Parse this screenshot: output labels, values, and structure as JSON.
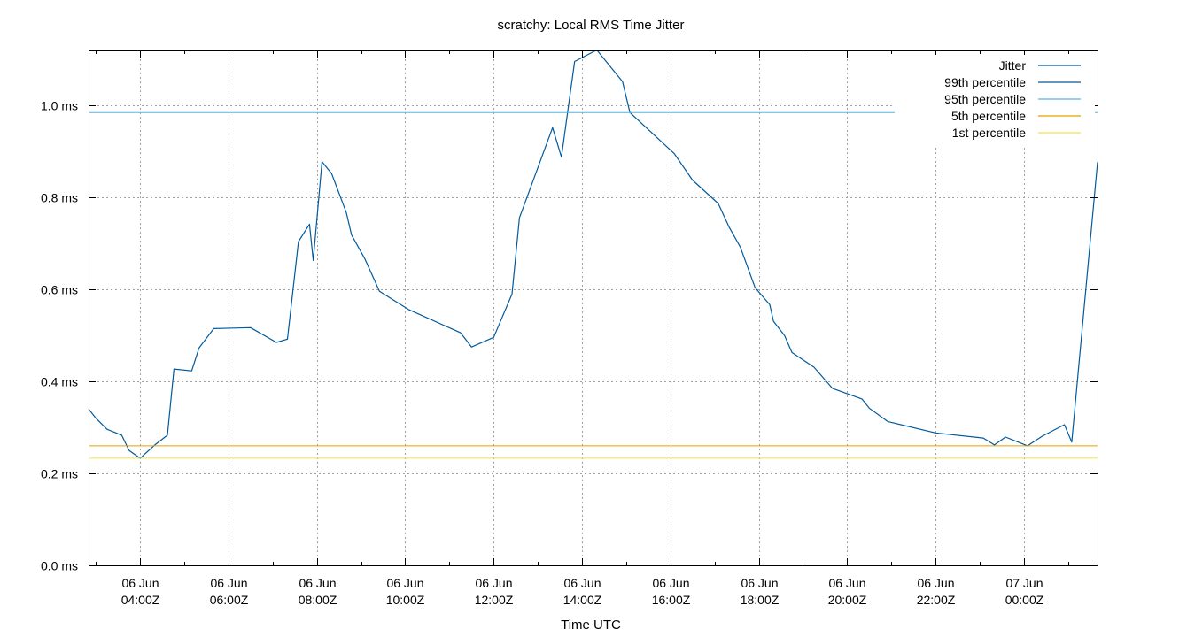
{
  "chart_data": {
    "type": "line",
    "title": "scratchy: Local RMS Time Jitter",
    "xlabel": "Time UTC",
    "ylabel": "",
    "ylim": [
      0,
      1.12
    ],
    "xlim": [
      "2024-06-06T02:50:00Z",
      "2024-06-07T01:40:00Z"
    ],
    "y_ticks": [
      {
        "value": 0.0,
        "label": "0.0 ms"
      },
      {
        "value": 0.2,
        "label": "0.2 ms"
      },
      {
        "value": 0.4,
        "label": "0.4 ms"
      },
      {
        "value": 0.6,
        "label": "0.6 ms"
      },
      {
        "value": 0.8,
        "label": "0.8 ms"
      },
      {
        "value": 1.0,
        "label": "1.0 ms"
      }
    ],
    "x_ticks": [
      {
        "value": "2024-06-06T04:00:00Z",
        "line1": "06 Jun",
        "line2": "04:00Z"
      },
      {
        "value": "2024-06-06T06:00:00Z",
        "line1": "06 Jun",
        "line2": "06:00Z"
      },
      {
        "value": "2024-06-06T08:00:00Z",
        "line1": "06 Jun",
        "line2": "08:00Z"
      },
      {
        "value": "2024-06-06T10:00:00Z",
        "line1": "06 Jun",
        "line2": "10:00Z"
      },
      {
        "value": "2024-06-06T12:00:00Z",
        "line1": "06 Jun",
        "line2": "12:00Z"
      },
      {
        "value": "2024-06-06T14:00:00Z",
        "line1": "06 Jun",
        "line2": "14:00Z"
      },
      {
        "value": "2024-06-06T16:00:00Z",
        "line1": "06 Jun",
        "line2": "16:00Z"
      },
      {
        "value": "2024-06-06T18:00:00Z",
        "line1": "06 Jun",
        "line2": "18:00Z"
      },
      {
        "value": "2024-06-06T20:00:00Z",
        "line1": "06 Jun",
        "line2": "20:00Z"
      },
      {
        "value": "2024-06-06T22:00:00Z",
        "line1": "06 Jun",
        "line2": "22:00Z"
      },
      {
        "value": "2024-06-07T00:00:00Z",
        "line1": "07 Jun",
        "line2": "00:00Z"
      }
    ],
    "grid": true,
    "legend_position": "top-right",
    "series": [
      {
        "name": "Jitter",
        "color": "#005a9c",
        "points": [
          [
            "2024-06-06T02:50:00Z",
            0.34
          ],
          [
            "2024-06-06T03:00:00Z",
            0.32
          ],
          [
            "2024-06-06T03:15:00Z",
            0.296
          ],
          [
            "2024-06-06T03:35:00Z",
            0.283
          ],
          [
            "2024-06-06T03:45:00Z",
            0.25
          ],
          [
            "2024-06-06T04:00:00Z",
            0.233
          ],
          [
            "2024-06-06T04:20:00Z",
            0.262
          ],
          [
            "2024-06-06T04:37:00Z",
            0.283
          ],
          [
            "2024-06-06T04:46:00Z",
            0.427
          ],
          [
            "2024-06-06T05:10:00Z",
            0.423
          ],
          [
            "2024-06-06T05:20:00Z",
            0.473
          ],
          [
            "2024-06-06T05:40:00Z",
            0.515
          ],
          [
            "2024-06-06T06:30:00Z",
            0.517
          ],
          [
            "2024-06-06T07:05:00Z",
            0.485
          ],
          [
            "2024-06-06T07:20:00Z",
            0.492
          ],
          [
            "2024-06-06T07:35:00Z",
            0.704
          ],
          [
            "2024-06-06T07:50:00Z",
            0.742
          ],
          [
            "2024-06-06T07:55:00Z",
            0.663
          ],
          [
            "2024-06-06T08:07:00Z",
            0.878
          ],
          [
            "2024-06-06T08:20:00Z",
            0.852
          ],
          [
            "2024-06-06T08:40:00Z",
            0.767
          ],
          [
            "2024-06-06T08:47:00Z",
            0.719
          ],
          [
            "2024-06-06T09:05:00Z",
            0.667
          ],
          [
            "2024-06-06T09:25:00Z",
            0.596
          ],
          [
            "2024-06-06T10:05:00Z",
            0.556
          ],
          [
            "2024-06-06T11:15:00Z",
            0.506
          ],
          [
            "2024-06-06T11:30:00Z",
            0.475
          ],
          [
            "2024-06-06T12:00:00Z",
            0.496
          ],
          [
            "2024-06-06T12:25:00Z",
            0.59
          ],
          [
            "2024-06-06T12:35:00Z",
            0.756
          ],
          [
            "2024-06-06T13:20:00Z",
            0.952
          ],
          [
            "2024-06-06T13:32:00Z",
            0.888
          ],
          [
            "2024-06-06T13:50:00Z",
            1.096
          ],
          [
            "2024-06-06T14:20:00Z",
            1.121
          ],
          [
            "2024-06-06T14:55:00Z",
            1.052
          ],
          [
            "2024-06-06T15:05:00Z",
            0.985
          ],
          [
            "2024-06-06T16:05:00Z",
            0.896
          ],
          [
            "2024-06-06T16:30:00Z",
            0.838
          ],
          [
            "2024-06-06T17:05:00Z",
            0.787
          ],
          [
            "2024-06-06T17:20:00Z",
            0.735
          ],
          [
            "2024-06-06T17:35:00Z",
            0.692
          ],
          [
            "2024-06-06T17:55:00Z",
            0.604
          ],
          [
            "2024-06-06T18:15:00Z",
            0.567
          ],
          [
            "2024-06-06T18:20:00Z",
            0.531
          ],
          [
            "2024-06-06T18:35:00Z",
            0.5
          ],
          [
            "2024-06-06T18:45:00Z",
            0.463
          ],
          [
            "2024-06-06T19:15:00Z",
            0.431
          ],
          [
            "2024-06-06T19:40:00Z",
            0.385
          ],
          [
            "2024-06-06T20:20:00Z",
            0.362
          ],
          [
            "2024-06-06T20:30:00Z",
            0.342
          ],
          [
            "2024-06-06T20:55:00Z",
            0.313
          ],
          [
            "2024-06-06T22:00:00Z",
            0.288
          ],
          [
            "2024-06-06T23:05:00Z",
            0.277
          ],
          [
            "2024-06-06T23:20:00Z",
            0.262
          ],
          [
            "2024-06-06T23:35:00Z",
            0.279
          ],
          [
            "2024-06-07T00:05:00Z",
            0.26
          ],
          [
            "2024-06-07T00:25:00Z",
            0.281
          ],
          [
            "2024-06-07T00:55:00Z",
            0.306
          ],
          [
            "2024-06-07T01:05:00Z",
            0.268
          ],
          [
            "2024-06-07T01:40:00Z",
            0.877
          ]
        ]
      },
      {
        "name": "99th percentile",
        "color": "#005a9c",
        "constant": null
      },
      {
        "name": "95th percentile",
        "color": "#56b4e9",
        "constant": 0.985
      },
      {
        "name": "5th percentile",
        "color": "#e69f00",
        "constant": 0.26
      },
      {
        "name": "1st percentile",
        "color": "#f0e442",
        "constant": 0.233
      }
    ]
  }
}
